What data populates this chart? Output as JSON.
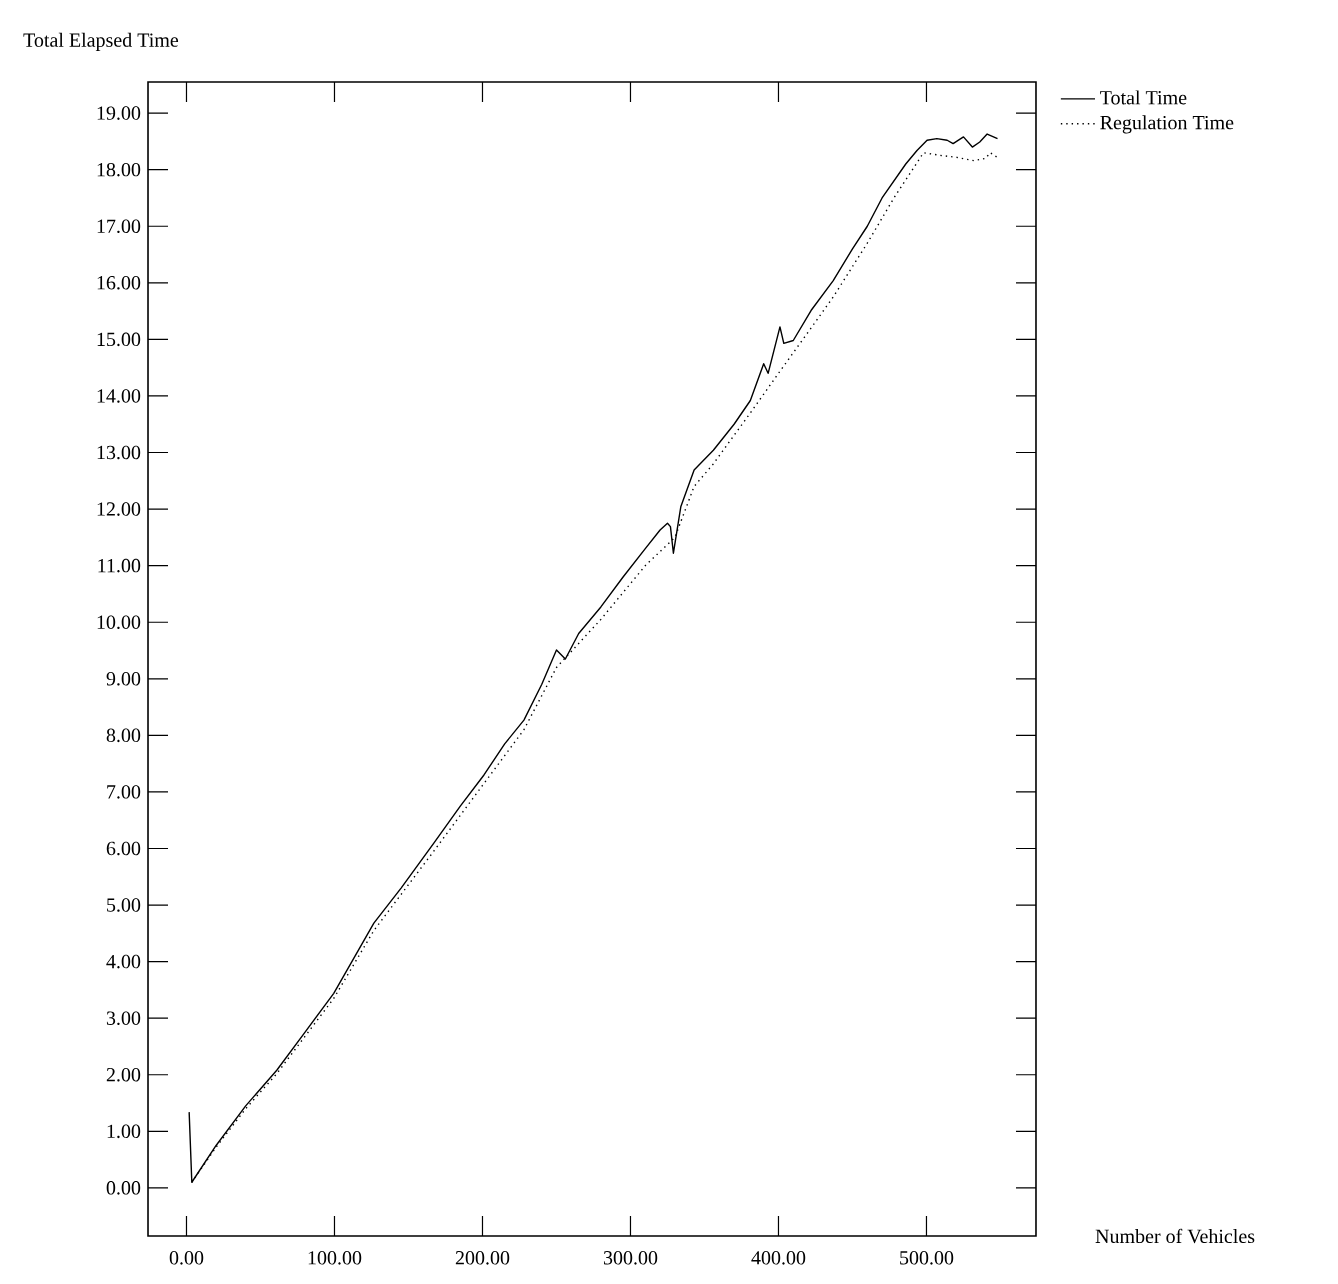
{
  "chart_data": {
    "type": "line",
    "xlabel": "Number of Vehicles",
    "ylabel": "Total Elapsed Time",
    "xlim": [
      -26,
      574
    ],
    "ylim": [
      -0.85,
      19.55
    ],
    "xticks": [
      {
        "value": 0,
        "label": "0.00"
      },
      {
        "value": 100,
        "label": "100.00"
      },
      {
        "value": 200,
        "label": "200.00"
      },
      {
        "value": 300,
        "label": "300.00"
      },
      {
        "value": 400,
        "label": "400.00"
      },
      {
        "value": 500,
        "label": "500.00"
      }
    ],
    "yticks": [
      {
        "value": 0,
        "label": "0.00"
      },
      {
        "value": 1,
        "label": "1.00"
      },
      {
        "value": 2,
        "label": "2.00"
      },
      {
        "value": 3,
        "label": "3.00"
      },
      {
        "value": 4,
        "label": "4.00"
      },
      {
        "value": 5,
        "label": "5.00"
      },
      {
        "value": 6,
        "label": "6.00"
      },
      {
        "value": 7,
        "label": "7.00"
      },
      {
        "value": 8,
        "label": "8.00"
      },
      {
        "value": 9,
        "label": "9.00"
      },
      {
        "value": 10,
        "label": "10.00"
      },
      {
        "value": 11,
        "label": "11.00"
      },
      {
        "value": 12,
        "label": "12.00"
      },
      {
        "value": 13,
        "label": "13.00"
      },
      {
        "value": 14,
        "label": "14.00"
      },
      {
        "value": 15,
        "label": "15.00"
      },
      {
        "value": 16,
        "label": "16.00"
      },
      {
        "value": 17,
        "label": "17.00"
      },
      {
        "value": 18,
        "label": "18.00"
      },
      {
        "value": 19,
        "label": "19.00"
      }
    ],
    "grid": false,
    "legend": "top right",
    "marker": "none",
    "series": [
      {
        "name": "Total Time",
        "color": "#000000",
        "line_style": "solid",
        "x": [
          1.8,
          3.6,
          20,
          40,
          61,
          80,
          99.5,
          126.6,
          145,
          167,
          185,
          201,
          215,
          228,
          240,
          250,
          256,
          265,
          280,
          295,
          310,
          320,
          325,
          327,
          329,
          334,
          343,
          356,
          370,
          381,
          390,
          393,
          401,
          403.6,
          410,
          422,
          437,
          450,
          460,
          470,
          478,
          486,
          493.6,
          500.4,
          507,
          514,
          518,
          525,
          531,
          536,
          541,
          548
        ],
        "values": [
          1.34,
          0.1,
          0.75,
          1.45,
          2.08,
          2.75,
          3.44,
          4.68,
          5.3,
          6.09,
          6.75,
          7.3,
          7.85,
          8.27,
          8.9,
          9.51,
          9.35,
          9.8,
          10.27,
          10.8,
          11.3,
          11.63,
          11.75,
          11.69,
          11.22,
          12.04,
          12.69,
          13.04,
          13.5,
          13.92,
          14.57,
          14.4,
          15.22,
          14.93,
          14.98,
          15.51,
          16.04,
          16.6,
          17.0,
          17.5,
          17.8,
          18.1,
          18.34,
          18.52,
          18.55,
          18.52,
          18.46,
          18.58,
          18.4,
          18.49,
          18.63,
          18.55
        ]
      },
      {
        "name": "Regulation Time",
        "color": "#000000",
        "line_style": "dotted",
        "x": [
          3.6,
          20,
          40,
          61,
          99.5,
          126.6,
          167,
          201,
          228,
          250,
          280,
          310,
          330,
          343,
          356,
          381,
          400,
          422,
          437,
          460,
          478,
          493,
          498,
          510,
          520,
          532,
          540,
          543,
          549
        ],
        "values": [
          0.1,
          0.72,
          1.4,
          2.02,
          3.35,
          4.55,
          5.95,
          7.15,
          8.1,
          9.2,
          10.05,
          11.0,
          11.5,
          12.4,
          12.8,
          13.7,
          14.4,
          15.2,
          15.75,
          16.7,
          17.5,
          18.1,
          18.3,
          18.25,
          18.22,
          18.16,
          18.2,
          18.3,
          18.2
        ]
      }
    ]
  }
}
